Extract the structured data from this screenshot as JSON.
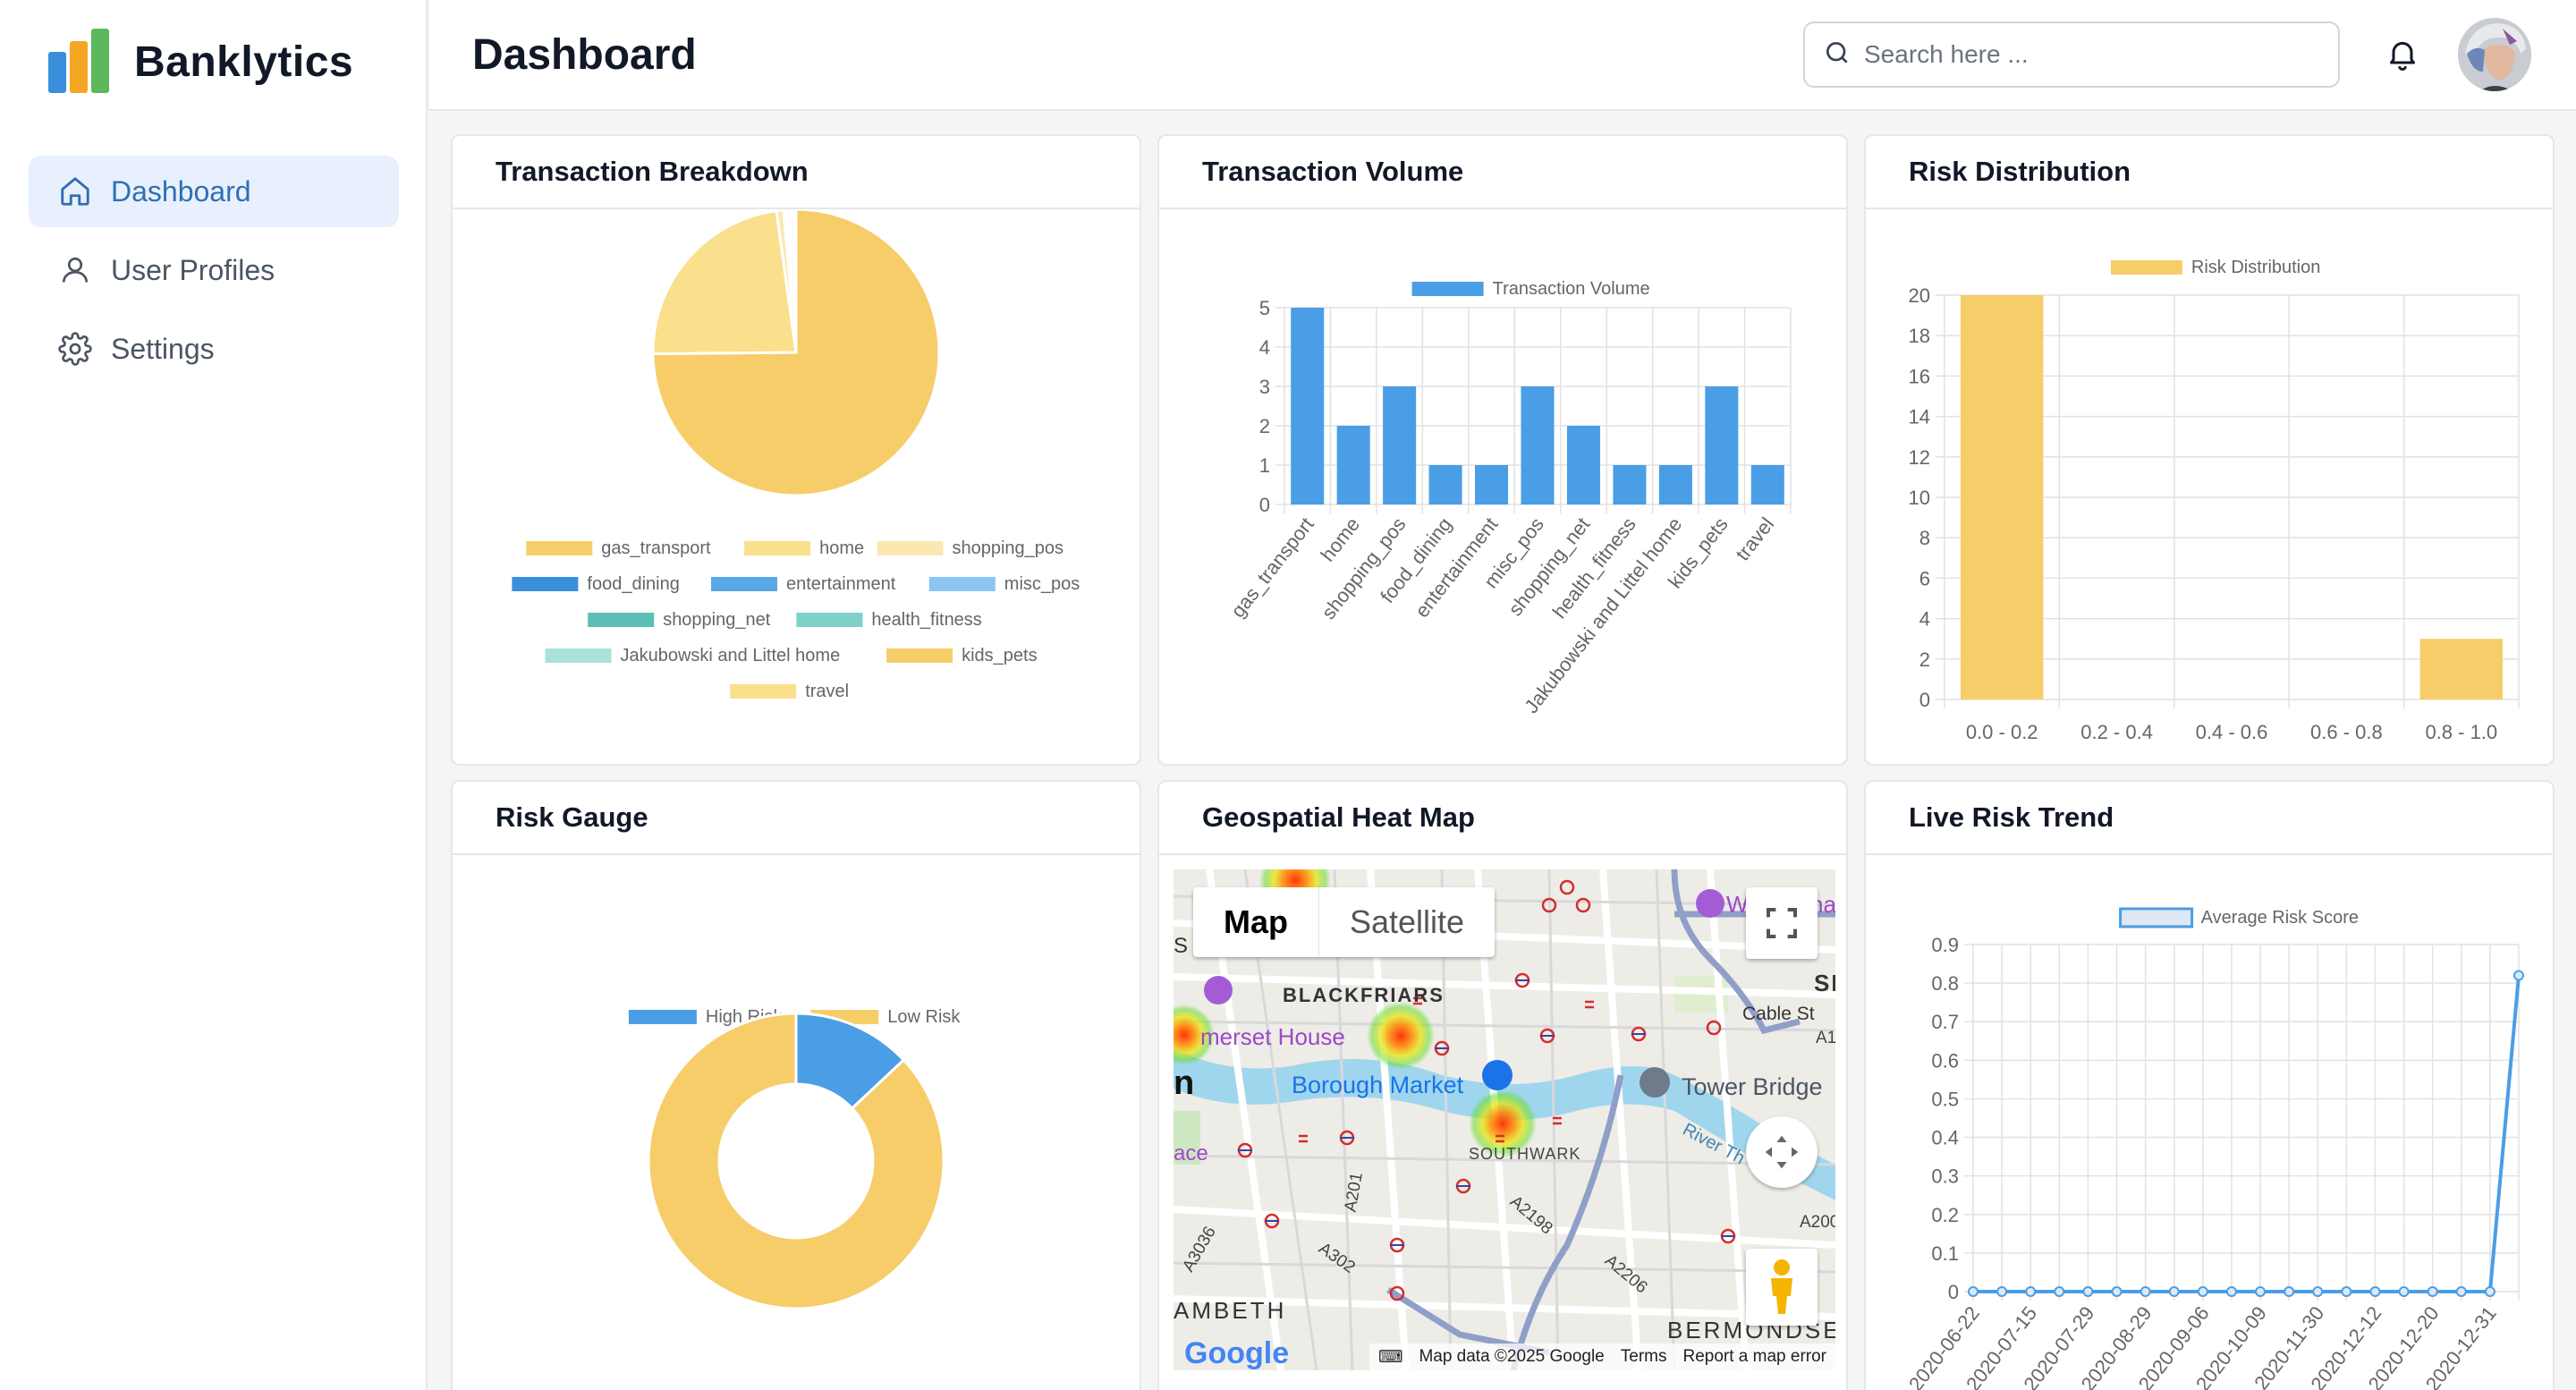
{
  "app": {
    "name": "Banklytics"
  },
  "sidebar": {
    "items": [
      {
        "label": "Dashboard",
        "icon": "home-icon",
        "active": true
      },
      {
        "label": "User Profiles",
        "icon": "user-icon",
        "active": false
      },
      {
        "label": "Settings",
        "icon": "gear-icon",
        "active": false
      }
    ]
  },
  "header": {
    "title": "Dashboard",
    "search_placeholder": "Search here ..."
  },
  "colors": {
    "accent": "#2f6fb3",
    "blue": "#4a9ee6",
    "yellow": "#f7cd6a",
    "light_yellow": "#fae08c",
    "teal": "#5bbfb5"
  },
  "cards": {
    "breakdown_title": "Transaction Breakdown",
    "volume_title": "Transaction Volume",
    "risk_dist_title": "Risk Distribution",
    "gauge_title": "Risk Gauge",
    "map_title": "Geospatial Heat Map",
    "trend_title": "Live Risk Trend"
  },
  "chart_data": [
    {
      "id": "transaction-breakdown",
      "type": "pie",
      "labels": [
        "gas_transport",
        "home",
        "shopping_pos",
        "food_dining",
        "entertainment",
        "misc_pos",
        "shopping_net",
        "health_fitness",
        "Jakubowski and Littel home",
        "kids_pets",
        "travel"
      ],
      "values": [
        75,
        23,
        0.8,
        0.3,
        0.3,
        0.3,
        0.1,
        0.1,
        0.1,
        0.1,
        0.1
      ],
      "colors": [
        "#f7cd6a",
        "#fae08c",
        "#fbe8b0",
        "#3a8fdc",
        "#5aa7e8",
        "#8cc4f2",
        "#5bbfb5",
        "#7fd1c8",
        "#a9e1dc",
        "#f7cd6a",
        "#fae08c"
      ]
    },
    {
      "id": "transaction-volume",
      "type": "bar",
      "series": [
        {
          "name": "Transaction Volume",
          "values": [
            5,
            2,
            3,
            1,
            1,
            3,
            2,
            1,
            1,
            3,
            1
          ]
        }
      ],
      "categories": [
        "gas_transport",
        "home",
        "shopping_pos",
        "food_dining",
        "entertainment",
        "misc_pos",
        "shopping_net",
        "health_fitness",
        "Jakubowski and Littel home",
        "kids_pets",
        "travel"
      ],
      "ylim": [
        0,
        5
      ],
      "yticks": [
        0,
        1,
        2,
        3,
        4,
        5
      ],
      "grid": true
    },
    {
      "id": "risk-distribution",
      "type": "bar",
      "series": [
        {
          "name": "Risk Distribution",
          "values": [
            20,
            0,
            0,
            0,
            3
          ]
        }
      ],
      "categories": [
        "0.0 - 0.2",
        "0.2 - 0.4",
        "0.4 - 0.6",
        "0.6 - 0.8",
        "0.8 - 1.0"
      ],
      "ylim": [
        0,
        20
      ],
      "yticks": [
        0,
        2,
        4,
        6,
        8,
        10,
        12,
        14,
        16,
        18,
        20
      ],
      "grid": true
    },
    {
      "id": "risk-gauge",
      "type": "pie",
      "labels": [
        "High Risk",
        "Low Risk"
      ],
      "values": [
        13,
        87
      ],
      "colors": [
        "#4a9ee6",
        "#f7cd6a"
      ]
    },
    {
      "id": "live-risk-trend",
      "type": "line",
      "series": [
        {
          "name": "Average Risk Score",
          "values": [
            0,
            0,
            0,
            0,
            0,
            0,
            0,
            0,
            0,
            0,
            0,
            0,
            0,
            0,
            0,
            0,
            0,
            0,
            0,
            0.82
          ]
        }
      ],
      "x": [
        "2020-06-22",
        "2020-07-03",
        "2020-07-15",
        "2020-07-22",
        "2020-07-29",
        "2020-08-10",
        "2020-08-29",
        "2020-09-01",
        "2020-09-06",
        "2020-09-20",
        "2020-10-09",
        "2020-10-25",
        "2020-11-30",
        "2020-12-05",
        "2020-12-12",
        "2020-12-16",
        "2020-12-20",
        "2020-12-26",
        "2020-12-31",
        "2021-01-05"
      ],
      "xtick_labels": [
        "2020-06-22",
        "2020-07-15",
        "2020-07-29",
        "2020-08-29",
        "2020-09-06",
        "2020-10-09",
        "2020-11-30",
        "2020-12-12",
        "2020-12-20",
        "2020-12-31"
      ],
      "ylim": [
        0,
        0.9
      ],
      "yticks": [
        0,
        0.1,
        0.2,
        0.3,
        0.4,
        0.5,
        0.6,
        0.7,
        0.8,
        0.9
      ],
      "grid": true
    }
  ],
  "map": {
    "toggle": [
      "Map",
      "Satellite"
    ],
    "labels": {
      "blackfriars": "BLACKFRIARS",
      "somerset": "merset House",
      "borough": "Borough Market",
      "tower": "Tower Bridge",
      "cable": "Cable St",
      "southwark": "SOUTHWARK",
      "river": "River Th",
      "lambeth": "AMBETH",
      "bermondsey": "BERMONDSE",
      "a201": "A201",
      "a302": "A302",
      "a2198": "A2198",
      "a3036": "A3036",
      "a2206": "A2206",
      "a200": "A200",
      "a1": "A1",
      "ace": "ace",
      "s": "S",
      "si": "SI",
      "ha": "ha",
      "w": "W",
      "m": "n"
    },
    "footer": {
      "data": "Map data ©2025 Google",
      "terms": "Terms",
      "report": "Report a map error"
    },
    "google": "Google"
  }
}
